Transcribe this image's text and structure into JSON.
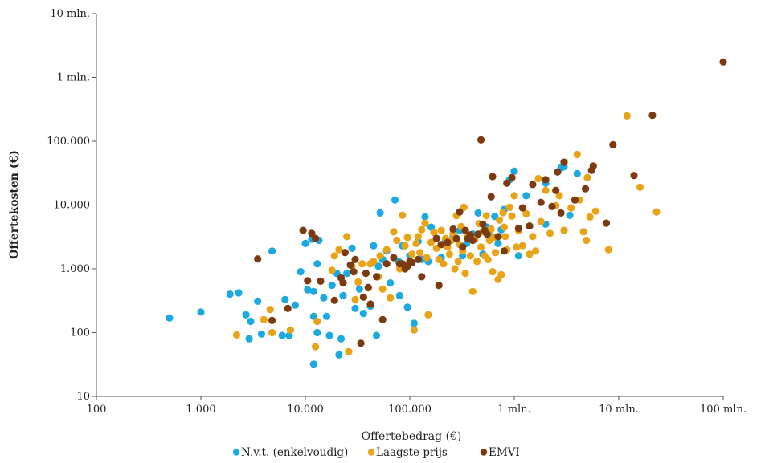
{
  "chart_data": {
    "type": "scatter",
    "x_scale": "log",
    "y_scale": "log",
    "xlabel": "Offertebedrag (€)",
    "ylabel": "Offertekosten (€)",
    "xlim": [
      100,
      100000000
    ],
    "ylim": [
      10,
      10000000
    ],
    "x_ticks": [
      {
        "value": 100,
        "label": "100"
      },
      {
        "value": 1000,
        "label": "1.000"
      },
      {
        "value": 10000,
        "label": "10.000"
      },
      {
        "value": 100000,
        "label": "100.000"
      },
      {
        "value": 1000000,
        "label": "1 mln."
      },
      {
        "value": 10000000,
        "label": "10 mln."
      },
      {
        "value": 100000000,
        "label": "100 mln."
      }
    ],
    "y_ticks": [
      {
        "value": 10,
        "label": "10"
      },
      {
        "value": 100,
        "label": "100"
      },
      {
        "value": 1000,
        "label": "1.000"
      },
      {
        "value": 10000,
        "label": "10.000"
      },
      {
        "value": 100000,
        "label": "100.000"
      },
      {
        "value": 1000000,
        "label": "1 mln."
      },
      {
        "value": 10000000,
        "label": "10 mln."
      }
    ],
    "grid": false,
    "legend_position": "bottom",
    "series": [
      {
        "name": "N.v.t. (enkelvoudig)",
        "color": "#1aa9e0",
        "points": [
          [
            500,
            170
          ],
          [
            1000,
            210
          ],
          [
            1900,
            400
          ],
          [
            2300,
            420
          ],
          [
            2700,
            190
          ],
          [
            2900,
            80
          ],
          [
            3000,
            150
          ],
          [
            3500,
            310
          ],
          [
            3800,
            95
          ],
          [
            4800,
            1900
          ],
          [
            6000,
            90
          ],
          [
            6400,
            330
          ],
          [
            7000,
            90
          ],
          [
            8000,
            270
          ],
          [
            10000,
            2500
          ],
          [
            10500,
            470
          ],
          [
            11500,
            2900
          ],
          [
            13000,
            1200
          ],
          [
            13500,
            2800
          ],
          [
            9000,
            900
          ],
          [
            12000,
            180
          ],
          [
            12000,
            32
          ],
          [
            13000,
            100
          ],
          [
            12000,
            440
          ],
          [
            15000,
            350
          ],
          [
            16000,
            180
          ],
          [
            17000,
            90
          ],
          [
            18000,
            550
          ],
          [
            20000,
            850
          ],
          [
            21000,
            45
          ],
          [
            22000,
            80
          ],
          [
            23000,
            380
          ],
          [
            25000,
            850
          ],
          [
            28000,
            2100
          ],
          [
            30000,
            240
          ],
          [
            33000,
            480
          ],
          [
            36000,
            200
          ],
          [
            42000,
            260
          ],
          [
            45000,
            2300
          ],
          [
            48000,
            90
          ],
          [
            50000,
            1100
          ],
          [
            52000,
            7500
          ],
          [
            55000,
            1400
          ],
          [
            60000,
            1900
          ],
          [
            65000,
            600
          ],
          [
            72000,
            12000
          ],
          [
            78000,
            1300
          ],
          [
            80000,
            380
          ],
          [
            85000,
            2300
          ],
          [
            95000,
            250
          ],
          [
            100000,
            1600
          ],
          [
            110000,
            140
          ],
          [
            120000,
            2700
          ],
          [
            130000,
            1400
          ],
          [
            140000,
            6500
          ],
          [
            150000,
            1300
          ],
          [
            160000,
            4500
          ],
          [
            200000,
            1500
          ],
          [
            220000,
            2800
          ],
          [
            260000,
            3200
          ],
          [
            300000,
            4000
          ],
          [
            320000,
            1600
          ],
          [
            350000,
            2500
          ],
          [
            400000,
            3500
          ],
          [
            450000,
            7500
          ],
          [
            500000,
            1700
          ],
          [
            550000,
            4500
          ],
          [
            600000,
            3200
          ],
          [
            650000,
            6600
          ],
          [
            700000,
            2500
          ],
          [
            750000,
            4100
          ],
          [
            800000,
            8500
          ],
          [
            900000,
            25000
          ],
          [
            1000000,
            34000
          ],
          [
            1100000,
            1600
          ],
          [
            1300000,
            14000
          ],
          [
            2000000,
            22000
          ],
          [
            3000000,
            40000
          ],
          [
            3400000,
            6900
          ],
          [
            4000000,
            31000
          ],
          [
            2000000,
            5000
          ],
          [
            2800000,
            38000
          ]
        ]
      },
      {
        "name": "Laagste prijs",
        "color": "#e8a317",
        "points": [
          [
            2200,
            92
          ],
          [
            4000,
            160
          ],
          [
            4600,
            230
          ],
          [
            4800,
            100
          ],
          [
            7200,
            110
          ],
          [
            13000,
            150
          ],
          [
            12500,
            60
          ],
          [
            18000,
            950
          ],
          [
            19000,
            1600
          ],
          [
            21000,
            2000
          ],
          [
            25000,
            3200
          ],
          [
            26000,
            50
          ],
          [
            28000,
            1100
          ],
          [
            30000,
            330
          ],
          [
            32000,
            620
          ],
          [
            35000,
            1200
          ],
          [
            40000,
            500
          ],
          [
            42000,
            1200
          ],
          [
            45000,
            1300
          ],
          [
            50000,
            750
          ],
          [
            52000,
            1600
          ],
          [
            55000,
            480
          ],
          [
            60000,
            2000
          ],
          [
            65000,
            350
          ],
          [
            70000,
            3800
          ],
          [
            75000,
            2800
          ],
          [
            80000,
            1000
          ],
          [
            85000,
            6900
          ],
          [
            90000,
            2300
          ],
          [
            95000,
            3100
          ],
          [
            100000,
            1300
          ],
          [
            105000,
            1700
          ],
          [
            110000,
            110
          ],
          [
            115000,
            2500
          ],
          [
            120000,
            3200
          ],
          [
            125000,
            1800
          ],
          [
            130000,
            4100
          ],
          [
            140000,
            5200
          ],
          [
            145000,
            1500
          ],
          [
            150000,
            190
          ],
          [
            160000,
            2600
          ],
          [
            170000,
            3700
          ],
          [
            180000,
            2100
          ],
          [
            190000,
            1400
          ],
          [
            200000,
            4000
          ],
          [
            210000,
            1200
          ],
          [
            220000,
            3000
          ],
          [
            230000,
            2200
          ],
          [
            240000,
            1700
          ],
          [
            250000,
            2800
          ],
          [
            260000,
            3600
          ],
          [
            270000,
            1000
          ],
          [
            280000,
            6800
          ],
          [
            290000,
            1300
          ],
          [
            300000,
            2400
          ],
          [
            310000,
            4600
          ],
          [
            320000,
            1900
          ],
          [
            330000,
            9200
          ],
          [
            340000,
            850
          ],
          [
            360000,
            3200
          ],
          [
            380000,
            1600
          ],
          [
            400000,
            440
          ],
          [
            420000,
            2900
          ],
          [
            440000,
            1300
          ],
          [
            460000,
            5100
          ],
          [
            480000,
            2200
          ],
          [
            500000,
            3800
          ],
          [
            520000,
            1600
          ],
          [
            540000,
            6800
          ],
          [
            560000,
            1400
          ],
          [
            580000,
            2800
          ],
          [
            600000,
            4200
          ],
          [
            620000,
            900
          ],
          [
            640000,
            3100
          ],
          [
            660000,
            1800
          ],
          [
            700000,
            680
          ],
          [
            720000,
            5800
          ],
          [
            750000,
            810
          ],
          [
            780000,
            7600
          ],
          [
            800000,
            4500
          ],
          [
            820000,
            3200
          ],
          [
            850000,
            2000
          ],
          [
            900000,
            9200
          ],
          [
            950000,
            6700
          ],
          [
            1000000,
            14000
          ],
          [
            1050000,
            2200
          ],
          [
            1100000,
            4000
          ],
          [
            1200000,
            2300
          ],
          [
            1300000,
            7300
          ],
          [
            1400000,
            1700
          ],
          [
            1500000,
            3200
          ],
          [
            1600000,
            1900
          ],
          [
            1700000,
            26000
          ],
          [
            1800000,
            5500
          ],
          [
            2000000,
            17000
          ],
          [
            2200000,
            3600
          ],
          [
            2500000,
            9800
          ],
          [
            2700000,
            14000
          ],
          [
            3000000,
            4000
          ],
          [
            3500000,
            9000
          ],
          [
            4000000,
            62000
          ],
          [
            4200000,
            12000
          ],
          [
            4600000,
            3800
          ],
          [
            4900000,
            2800
          ],
          [
            5000000,
            27000
          ],
          [
            5300000,
            6500
          ],
          [
            16000000,
            19000
          ],
          [
            23000000,
            7800
          ],
          [
            12000000,
            250000
          ],
          [
            8000000,
            2000
          ],
          [
            6000000,
            8000
          ]
        ]
      },
      {
        "name": "EMVI",
        "color": "#7b3a10",
        "points": [
          [
            3500,
            1430
          ],
          [
            4800,
            155
          ],
          [
            6800,
            240
          ],
          [
            9500,
            4000
          ],
          [
            10500,
            650
          ],
          [
            11500,
            3600
          ],
          [
            12500,
            3000
          ],
          [
            14000,
            640
          ],
          [
            19000,
            320
          ],
          [
            22000,
            720
          ],
          [
            23000,
            600
          ],
          [
            24000,
            1800
          ],
          [
            27000,
            1150
          ],
          [
            29000,
            900
          ],
          [
            30000,
            1400
          ],
          [
            34000,
            68
          ],
          [
            36000,
            360
          ],
          [
            38000,
            850
          ],
          [
            40000,
            510
          ],
          [
            42000,
            280
          ],
          [
            48000,
            750
          ],
          [
            55000,
            160
          ],
          [
            60000,
            1200
          ],
          [
            70000,
            1500
          ],
          [
            80000,
            1200
          ],
          [
            85000,
            1200
          ],
          [
            90000,
            1000
          ],
          [
            95000,
            1100
          ],
          [
            100000,
            1300
          ],
          [
            105000,
            1250
          ],
          [
            120000,
            1400
          ],
          [
            130000,
            750
          ],
          [
            180000,
            3000
          ],
          [
            190000,
            550
          ],
          [
            200000,
            2400
          ],
          [
            230000,
            2600
          ],
          [
            260000,
            4200
          ],
          [
            280000,
            3000
          ],
          [
            300000,
            7800
          ],
          [
            320000,
            2200
          ],
          [
            340000,
            4000
          ],
          [
            360000,
            3000
          ],
          [
            380000,
            3400
          ],
          [
            400000,
            2800
          ],
          [
            450000,
            3500
          ],
          [
            480000,
            105000
          ],
          [
            500000,
            5000
          ],
          [
            520000,
            4000
          ],
          [
            550000,
            3500
          ],
          [
            600000,
            13500
          ],
          [
            620000,
            28000
          ],
          [
            700000,
            3200
          ],
          [
            800000,
            1900
          ],
          [
            850000,
            22000
          ],
          [
            950000,
            27000
          ],
          [
            1100000,
            4300
          ],
          [
            1200000,
            9000
          ],
          [
            1400000,
            4700
          ],
          [
            1500000,
            21000
          ],
          [
            1800000,
            11000
          ],
          [
            2000000,
            25000
          ],
          [
            2300000,
            9500
          ],
          [
            2500000,
            17000
          ],
          [
            2600000,
            33000
          ],
          [
            2800000,
            7500
          ],
          [
            3000000,
            47000
          ],
          [
            3800000,
            12000
          ],
          [
            4800000,
            18000
          ],
          [
            5500000,
            35000
          ],
          [
            5700000,
            41000
          ],
          [
            7600000,
            5200
          ],
          [
            8800000,
            88000
          ],
          [
            14000000,
            29000
          ],
          [
            21000000,
            255000
          ],
          [
            100000000,
            1750000
          ]
        ]
      }
    ]
  }
}
